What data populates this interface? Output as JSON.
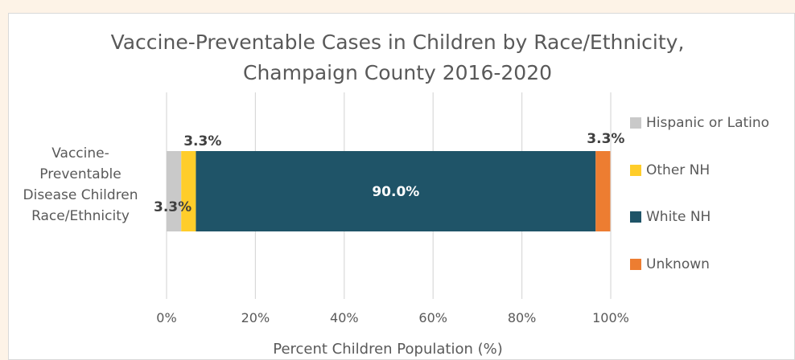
{
  "chart_data": {
    "type": "bar",
    "orientation": "horizontal",
    "stacked": "100%",
    "title": "Vaccine-Preventable Cases in Children by Race/Ethnicity, Champaign County 2016-2020",
    "title_lines": [
      "Vaccine-Preventable Cases in Children by Race/Ethnicity,",
      "Champaign County 2016-2020"
    ],
    "categories": [
      "Vaccine-Preventable Disease Children Race/Ethnicity"
    ],
    "category_lines": [
      "Vaccine-",
      "Preventable",
      "Disease Children",
      "Race/Ethnicity"
    ],
    "series": [
      {
        "name": "Hispanic or Latino",
        "values": [
          3.3
        ],
        "color": "#c9c9c9",
        "data_label": ""
      },
      {
        "name": "Other NH",
        "values": [
          3.3
        ],
        "color": "#ffcd2a",
        "data_label": "3.3%"
      },
      {
        "name": "White NH",
        "values": [
          90.0
        ],
        "color": "#1f5468",
        "data_label": "90.0%"
      },
      {
        "name": "Unknown",
        "values": [
          3.3
        ],
        "color": "#ed7d31",
        "data_label": "3.3%"
      }
    ],
    "extra_labels": [
      "3.3%"
    ],
    "xlabel": "Percent Children Population (%)",
    "ylabel": "",
    "xlim": [
      0,
      100
    ],
    "ticks": [
      "0%",
      "20%",
      "40%",
      "60%",
      "80%",
      "100%"
    ],
    "grid": true,
    "legend_position": "right"
  }
}
